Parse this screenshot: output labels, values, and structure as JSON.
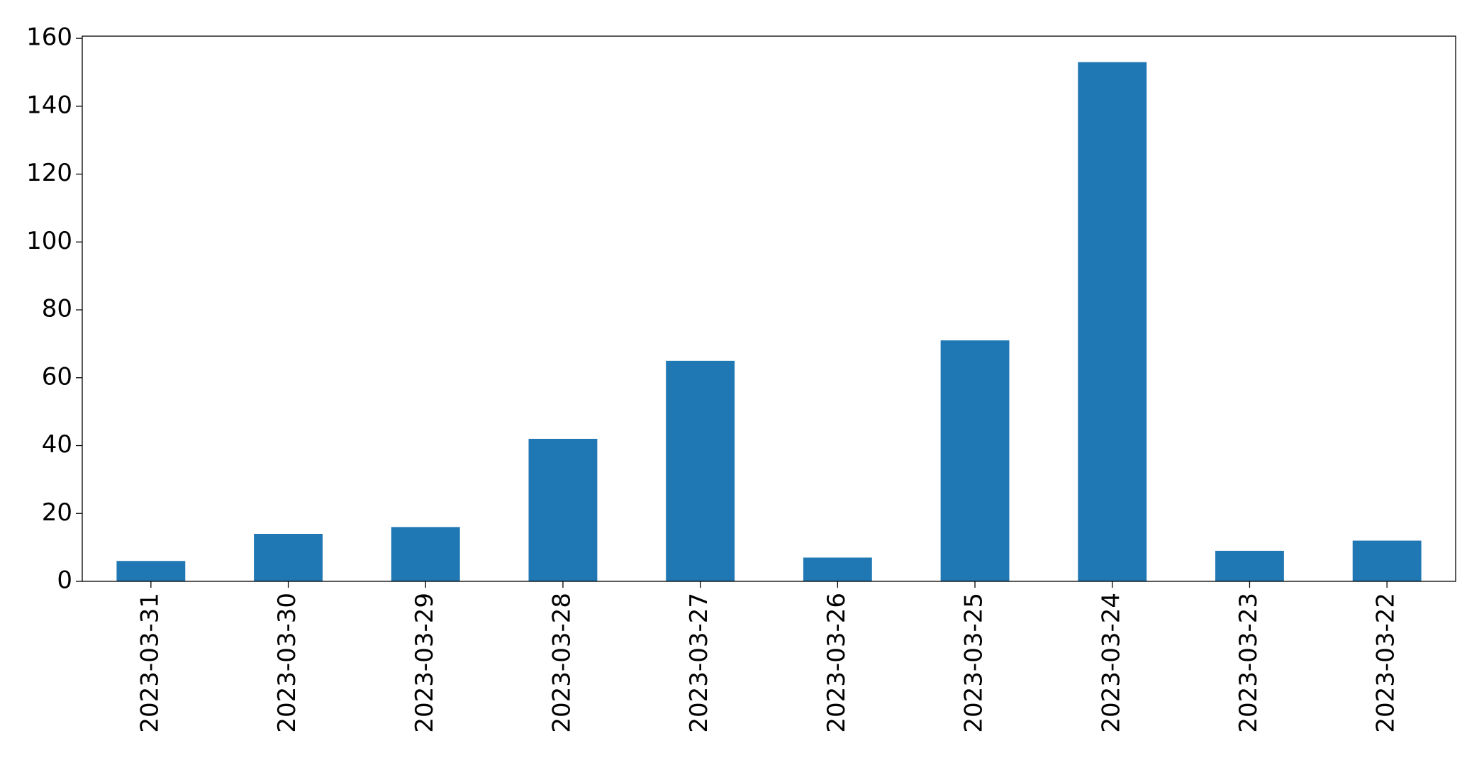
{
  "chart_data": {
    "type": "bar",
    "categories": [
      "2023-03-31",
      "2023-03-30",
      "2023-03-29",
      "2023-03-28",
      "2023-03-27",
      "2023-03-26",
      "2023-03-25",
      "2023-03-24",
      "2023-03-23",
      "2023-03-22"
    ],
    "values": [
      6,
      14,
      16,
      42,
      65,
      7,
      71,
      153,
      9,
      12
    ],
    "color": "#1f77b4",
    "ylim": [
      0,
      160.65
    ],
    "yticks": [
      0,
      20,
      40,
      60,
      80,
      100,
      120,
      140,
      160
    ],
    "grid": false
  }
}
